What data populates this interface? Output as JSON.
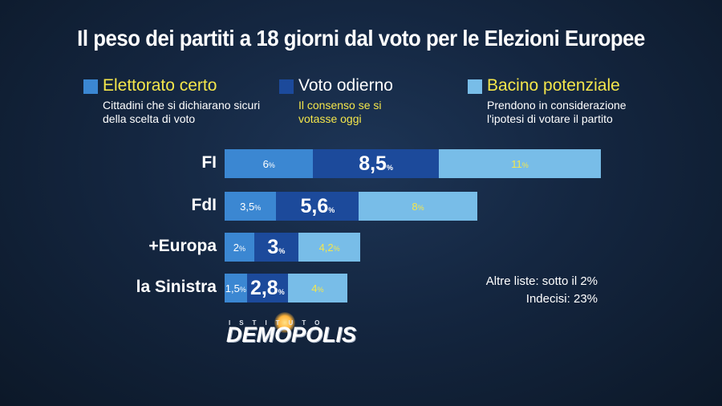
{
  "title": "Il peso dei partiti a 18 giorni dal voto per le Elezioni Europee",
  "legend": [
    {
      "name": "Elettorato certo",
      "desc": "Cittadini che si dichiarano sicuri della scelta di voto",
      "color": "#3b87d2",
      "name_color": "#f4e64b",
      "desc_color": "#ffffff"
    },
    {
      "name": "Voto odierno",
      "desc": "Il consenso se si votasse oggi",
      "color": "#1c4a9b",
      "name_color": "#ffffff",
      "desc_color": "#f4e64b"
    },
    {
      "name": "Bacino potenziale",
      "desc": "Prendono in considerazione l'ipotesi di votare il partito",
      "color": "#78bde8",
      "name_color": "#f4e64b",
      "desc_color": "#ffffff"
    }
  ],
  "chart_data": {
    "type": "bar",
    "stacked": true,
    "orientation": "horizontal",
    "title": "Il peso dei partiti a 18 giorni dal voto per le Elezioni Europee",
    "categories": [
      "FI",
      "FdI",
      "+Europa",
      "la Sinistra"
    ],
    "series": [
      {
        "name": "Elettorato certo",
        "values": [
          6,
          3.5,
          2,
          1.5
        ],
        "labels": [
          "6",
          "3,5",
          "2",
          "1,5"
        ]
      },
      {
        "name": "Voto odierno",
        "values": [
          8.5,
          5.6,
          3,
          2.8
        ],
        "labels": [
          "8,5",
          "5,6",
          "3",
          "2,8"
        ]
      },
      {
        "name": "Bacino potenziale",
        "values": [
          11,
          8,
          4.2,
          4
        ],
        "labels": [
          "11",
          "8",
          "4,2",
          "4"
        ]
      }
    ],
    "unit": "%"
  },
  "notes": [
    "Altre liste: sotto il 2%",
    "Indecisi: 23%"
  ],
  "logo": {
    "top": "ISTITUTO",
    "main": "DEMOPOLIS"
  }
}
